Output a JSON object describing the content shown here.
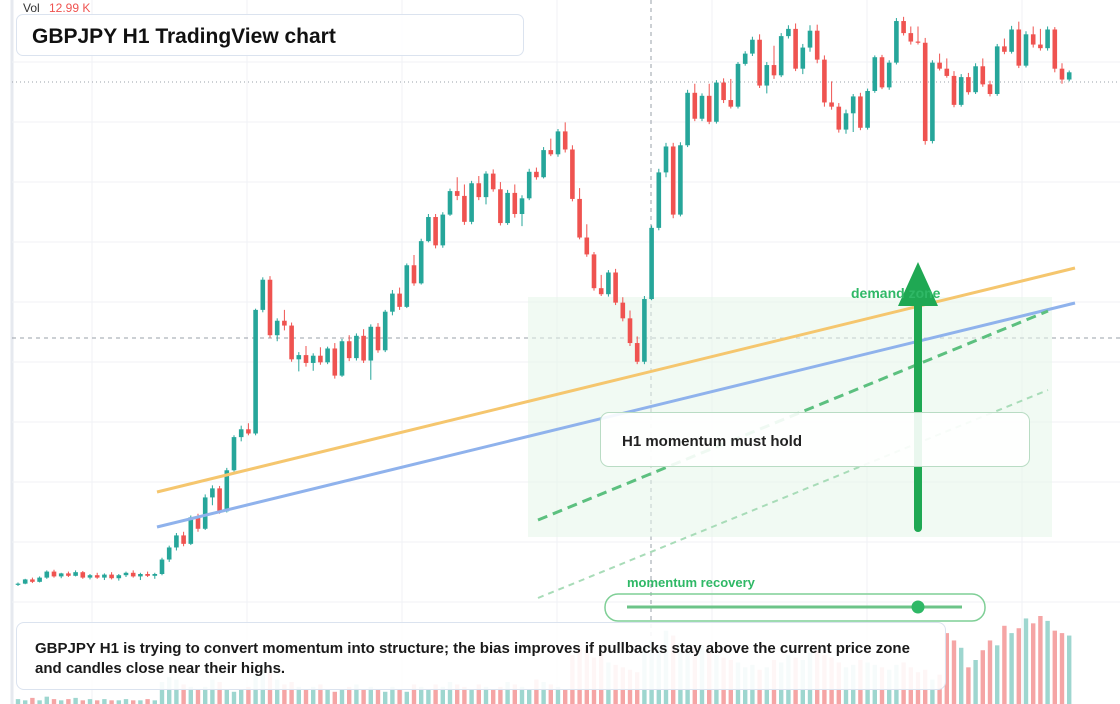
{
  "header": {
    "vol_label": "Vol",
    "vol_value": "12.99 K",
    "title": "GBPJPY H1 TradingView chart"
  },
  "annotations": {
    "callout": "H1 momentum must hold",
    "zone_label": "demand zone",
    "recovery_label": "momentum recovery",
    "summary": "GBPJPY H1 is trying to convert momentum into structure; the bias improves if pullbacks stay above the current price zone and candles close near their highs."
  },
  "colors": {
    "up": "#26a69a",
    "down": "#ef5350",
    "vol_up": "#9ed6cf",
    "vol_down": "#f5a5a5",
    "orange_trend": "#f5c66e",
    "blue_trend": "#8fb2ec",
    "green_accent": "#1fa853",
    "zone_fill": "#e6f5e9"
  },
  "icons": [
    "up-arrow-icon"
  ],
  "chart_data": {
    "type": "candlestick",
    "symbol": "GBPJPY",
    "timeframe": "H1",
    "price_range": [
      0,
      100
    ],
    "candles": [
      [
        5,
        5.4,
        4.8,
        5.2
      ],
      [
        5.2,
        6.0,
        5.1,
        5.9
      ],
      [
        5.9,
        6.2,
        5.3,
        5.5
      ],
      [
        5.5,
        6.4,
        5.4,
        6.2
      ],
      [
        6.2,
        7.4,
        6.0,
        7.2
      ],
      [
        7.2,
        7.5,
        6.2,
        6.4
      ],
      [
        6.4,
        7.0,
        6.1,
        6.9
      ],
      [
        6.9,
        7.2,
        6.3,
        6.5
      ],
      [
        6.5,
        7.4,
        6.4,
        7.1
      ],
      [
        7.1,
        7.3,
        6.0,
        6.2
      ],
      [
        6.2,
        6.8,
        5.9,
        6.6
      ],
      [
        6.6,
        7.0,
        6.0,
        6.2
      ],
      [
        6.2,
        6.9,
        5.8,
        6.7
      ],
      [
        6.7,
        7.1,
        5.9,
        6.1
      ],
      [
        6.1,
        6.8,
        5.7,
        6.6
      ],
      [
        6.6,
        7.2,
        6.3,
        7.0
      ],
      [
        7.0,
        7.4,
        6.2,
        6.4
      ],
      [
        6.4,
        7.0,
        5.8,
        6.8
      ],
      [
        6.8,
        7.2,
        6.3,
        6.5
      ],
      [
        6.5,
        7.0,
        6.0,
        6.8
      ],
      [
        6.8,
        9.5,
        6.6,
        9.2
      ],
      [
        9.2,
        11.5,
        8.8,
        11.2
      ],
      [
        11.2,
        13.6,
        10.7,
        13.2
      ],
      [
        13.2,
        13.8,
        11.4,
        11.8
      ],
      [
        11.8,
        16.5,
        11.6,
        16.2
      ],
      [
        16.2,
        16.8,
        13.8,
        14.3
      ],
      [
        14.3,
        20.0,
        14.1,
        19.5
      ],
      [
        19.5,
        21.5,
        18.2,
        21.0
      ],
      [
        21.0,
        21.4,
        16.8,
        17.2
      ],
      [
        17.2,
        24.4,
        17.0,
        24.0
      ],
      [
        24.0,
        29.8,
        23.8,
        29.5
      ],
      [
        29.5,
        31.4,
        28.8,
        30.8
      ],
      [
        30.8,
        31.8,
        29.8,
        30.1
      ],
      [
        30.1,
        50.8,
        29.8,
        50.6
      ],
      [
        50.6,
        56.0,
        50.2,
        55.6
      ],
      [
        55.6,
        56.2,
        46.0,
        46.4
      ],
      [
        46.4,
        49.2,
        45.4,
        48.8
      ],
      [
        48.8,
        50.6,
        47.2,
        48.0
      ],
      [
        48.0,
        48.5,
        42.0,
        42.4
      ],
      [
        42.4,
        43.6,
        40.4,
        43.1
      ],
      [
        43.1,
        44.6,
        41.2,
        41.8
      ],
      [
        41.8,
        43.4,
        40.5,
        43.0
      ],
      [
        43.0,
        44.4,
        41.5,
        41.9
      ],
      [
        41.9,
        44.5,
        41.6,
        44.2
      ],
      [
        44.2,
        45.1,
        39.2,
        39.7
      ],
      [
        39.7,
        45.8,
        39.5,
        45.4
      ],
      [
        45.4,
        46.4,
        42.1,
        42.6
      ],
      [
        42.6,
        46.7,
        42.2,
        46.3
      ],
      [
        46.3,
        47.4,
        41.8,
        42.2
      ],
      [
        42.2,
        48.2,
        39.0,
        47.8
      ],
      [
        47.8,
        48.4,
        43.5,
        43.9
      ],
      [
        43.9,
        50.6,
        43.6,
        50.3
      ],
      [
        50.3,
        53.9,
        49.7,
        53.3
      ],
      [
        53.3,
        54.3,
        50.6,
        51.1
      ],
      [
        51.1,
        58.3,
        50.9,
        58.0
      ],
      [
        58.0,
        59.7,
        54.6,
        55.0
      ],
      [
        55.0,
        62.4,
        54.8,
        62.0
      ],
      [
        62.0,
        66.5,
        61.8,
        66.0
      ],
      [
        66.0,
        66.5,
        60.8,
        61.3
      ],
      [
        61.3,
        66.8,
        60.9,
        66.4
      ],
      [
        66.4,
        70.7,
        66.2,
        70.3
      ],
      [
        70.3,
        72.6,
        68.8,
        69.5
      ],
      [
        69.5,
        71.4,
        64.7,
        65.2
      ],
      [
        65.2,
        72.0,
        64.8,
        71.6
      ],
      [
        71.6,
        72.8,
        68.8,
        69.3
      ],
      [
        69.3,
        73.6,
        68.1,
        73.2
      ],
      [
        73.2,
        73.9,
        70.2,
        70.6
      ],
      [
        70.6,
        71.8,
        64.6,
        65.0
      ],
      [
        65.0,
        70.5,
        64.7,
        70.0
      ],
      [
        70.0,
        71.4,
        65.9,
        66.5
      ],
      [
        66.5,
        69.6,
        64.5,
        69.1
      ],
      [
        69.1,
        74.0,
        68.8,
        73.5
      ],
      [
        73.5,
        74.2,
        72.2,
        72.6
      ],
      [
        72.6,
        77.6,
        72.4,
        77.1
      ],
      [
        77.1,
        79.0,
        76.1,
        76.4
      ],
      [
        76.4,
        80.6,
        76.0,
        80.2
      ],
      [
        80.2,
        81.7,
        76.7,
        77.2
      ],
      [
        77.2,
        77.9,
        68.6,
        69.0
      ],
      [
        69.0,
        70.8,
        62.3,
        62.6
      ],
      [
        62.6,
        64.8,
        59.4,
        59.8
      ],
      [
        59.8,
        60.2,
        53.8,
        54.2
      ],
      [
        54.2,
        56.4,
        52.9,
        53.2
      ],
      [
        53.2,
        57.2,
        52.8,
        56.8
      ],
      [
        56.8,
        57.4,
        51.4,
        51.8
      ],
      [
        51.8,
        52.7,
        48.7,
        49.2
      ],
      [
        49.2,
        50.5,
        44.6,
        45.1
      ],
      [
        45.1,
        46.2,
        41.6,
        42.0
      ],
      [
        42.0,
        52.9,
        41.6,
        52.4
      ],
      [
        52.4,
        64.6,
        52.2,
        64.2
      ],
      [
        64.2,
        74.0,
        63.8,
        73.4
      ],
      [
        73.4,
        78.3,
        72.6,
        77.7
      ],
      [
        77.7,
        78.3,
        65.8,
        66.4
      ],
      [
        66.4,
        78.4,
        66.1,
        77.9
      ],
      [
        77.9,
        87.1,
        77.6,
        86.6
      ],
      [
        86.6,
        88.1,
        81.9,
        82.3
      ],
      [
        82.3,
        86.5,
        81.9,
        86.1
      ],
      [
        86.1,
        88.1,
        81.4,
        81.8
      ],
      [
        81.8,
        88.7,
        81.5,
        88.3
      ],
      [
        88.3,
        89.0,
        84.9,
        85.4
      ],
      [
        85.4,
        88.9,
        84.0,
        84.3
      ],
      [
        84.3,
        91.7,
        84.0,
        91.4
      ],
      [
        91.4,
        93.5,
        91.1,
        93.1
      ],
      [
        93.1,
        95.9,
        92.7,
        95.4
      ],
      [
        95.4,
        96.3,
        87.4,
        87.8
      ],
      [
        87.8,
        91.7,
        86.5,
        91.2
      ],
      [
        91.2,
        94.4,
        88.9,
        89.5
      ],
      [
        89.5,
        96.5,
        89.2,
        96.0
      ],
      [
        96.0,
        97.8,
        95.6,
        97.2
      ],
      [
        97.2,
        98.1,
        90.2,
        90.6
      ],
      [
        90.6,
        94.7,
        89.7,
        94.1
      ],
      [
        94.1,
        97.8,
        93.4,
        96.9
      ],
      [
        96.9,
        97.9,
        91.5,
        92.1
      ],
      [
        92.1,
        92.8,
        84.3,
        85.0
      ],
      [
        85.0,
        88.5,
        83.8,
        84.3
      ],
      [
        84.3,
        84.9,
        80.0,
        80.5
      ],
      [
        80.5,
        83.8,
        79.8,
        83.2
      ],
      [
        83.2,
        86.4,
        80.1,
        86.0
      ],
      [
        86.0,
        86.6,
        80.4,
        80.8
      ],
      [
        80.8,
        87.3,
        80.5,
        86.9
      ],
      [
        86.9,
        92.8,
        86.6,
        92.5
      ],
      [
        92.5,
        92.9,
        87.2,
        87.5
      ],
      [
        87.5,
        92.0,
        87.1,
        91.6
      ],
      [
        91.6,
        99.0,
        91.3,
        98.5
      ],
      [
        98.5,
        99.2,
        96.1,
        96.5
      ],
      [
        96.5,
        97.6,
        94.6,
        95.1
      ],
      [
        95.1,
        97.6,
        94.6,
        94.9
      ],
      [
        94.9,
        95.7,
        78.0,
        78.6
      ],
      [
        78.6,
        92.0,
        78.2,
        91.6
      ],
      [
        91.6,
        93.1,
        90.3,
        90.6
      ],
      [
        90.6,
        92.3,
        89.1,
        89.4
      ],
      [
        89.4,
        90.2,
        84.2,
        84.6
      ],
      [
        84.6,
        89.7,
        84.3,
        89.2
      ],
      [
        89.2,
        89.9,
        86.3,
        86.7
      ],
      [
        86.7,
        91.5,
        86.4,
        91.0
      ],
      [
        91.0,
        92.3,
        87.6,
        88.0
      ],
      [
        88.0,
        88.6,
        86.0,
        86.4
      ],
      [
        86.4,
        94.7,
        86.1,
        94.3
      ],
      [
        94.3,
        95.6,
        93.0,
        93.4
      ],
      [
        93.4,
        97.7,
        93.1,
        97.1
      ],
      [
        97.1,
        98.4,
        90.7,
        91.1
      ],
      [
        91.1,
        96.8,
        90.8,
        96.3
      ],
      [
        96.3,
        97.6,
        94.1,
        94.6
      ],
      [
        94.6,
        97.2,
        93.6,
        94.0
      ],
      [
        94.0,
        97.6,
        93.6,
        97.1
      ],
      [
        97.1,
        97.5,
        90.0,
        90.6
      ],
      [
        90.6,
        91.5,
        88.1,
        88.8
      ],
      [
        88.8,
        90.3,
        88.5,
        90.0
      ]
    ],
    "volume": [
      4,
      3,
      5,
      3,
      6,
      4,
      3,
      4,
      5,
      3,
      4,
      3,
      4,
      3,
      3,
      4,
      3,
      3,
      4,
      3,
      18,
      22,
      20,
      16,
      14,
      12,
      14,
      20,
      18,
      12,
      10,
      12,
      14,
      24,
      28,
      26,
      20,
      16,
      18,
      14,
      12,
      14,
      16,
      12,
      10,
      12,
      14,
      16,
      12,
      14,
      12,
      10,
      14,
      12,
      10,
      16,
      14,
      12,
      16,
      14,
      18,
      16,
      14,
      12,
      16,
      14,
      12,
      14,
      18,
      16,
      14,
      12,
      20,
      18,
      16,
      14,
      12,
      40,
      46,
      44,
      38,
      42,
      34,
      32,
      30,
      28,
      26,
      46,
      52,
      48,
      60,
      56,
      50,
      44,
      46,
      48,
      42,
      40,
      38,
      36,
      34,
      30,
      32,
      28,
      30,
      36,
      34,
      40,
      38,
      36,
      42,
      44,
      40,
      38,
      34,
      30,
      32,
      36,
      34,
      32,
      30,
      28,
      32,
      34,
      30,
      26,
      28,
      20,
      24,
      58,
      52,
      46,
      30,
      36,
      44,
      52,
      48,
      64,
      58,
      62,
      70,
      66,
      72,
      68,
      60,
      58,
      56
    ]
  }
}
